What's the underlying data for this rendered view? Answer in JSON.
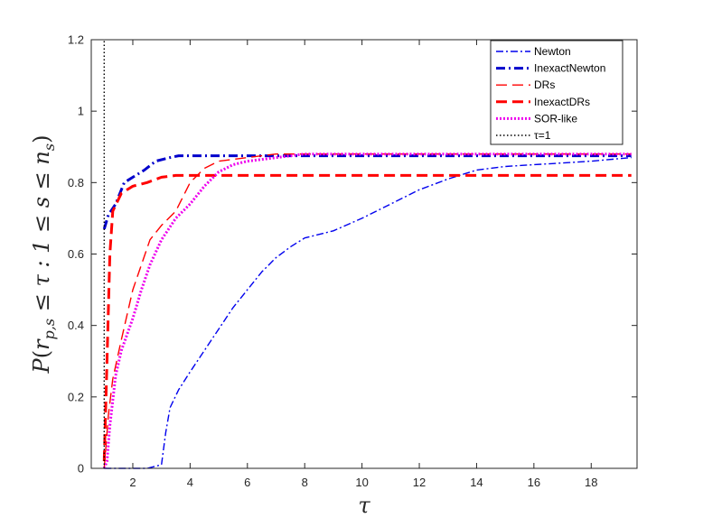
{
  "chart_data": {
    "type": "line",
    "title": "",
    "xlabel": "τ",
    "ylabel": "P(r_{p,s} ≤ τ : 1 ≤ s ≤ n_s)",
    "ylabel_parts": {
      "p": "P",
      "open": "(",
      "r": "r",
      "sub": "p,s",
      "rest": " ≤ τ : 1 ≤ s ≤ n",
      "ns_sub": "s",
      "close": ")"
    },
    "xlim": [
      0.55,
      19.6
    ],
    "ylim": [
      0,
      1.2
    ],
    "xticks": [
      2,
      4,
      6,
      8,
      10,
      12,
      14,
      16,
      18
    ],
    "yticks": [
      0,
      0.2,
      0.4,
      0.6,
      0.8,
      1,
      1.2
    ],
    "ytick_labels": [
      "0",
      "0.2",
      "0.4",
      "0.6",
      "0.8",
      "1",
      "1.2"
    ],
    "grid": false,
    "legend_position": "top-right",
    "series": [
      {
        "name": "Newton",
        "color": "#0000ee",
        "style": "dashdot",
        "width": "thin",
        "points": [
          [
            1,
            0
          ],
          [
            2.5,
            0
          ],
          [
            3.0,
            0.01
          ],
          [
            3.15,
            0.1
          ],
          [
            3.3,
            0.17
          ],
          [
            3.6,
            0.22
          ],
          [
            4.0,
            0.27
          ],
          [
            4.5,
            0.33
          ],
          [
            5.0,
            0.39
          ],
          [
            5.5,
            0.45
          ],
          [
            6.0,
            0.5
          ],
          [
            6.5,
            0.55
          ],
          [
            7.0,
            0.59
          ],
          [
            7.5,
            0.62
          ],
          [
            8.0,
            0.645
          ],
          [
            9.0,
            0.665
          ],
          [
            10.0,
            0.7
          ],
          [
            11.0,
            0.74
          ],
          [
            12.0,
            0.78
          ],
          [
            13.0,
            0.81
          ],
          [
            14.0,
            0.835
          ],
          [
            15.0,
            0.845
          ],
          [
            16.0,
            0.85
          ],
          [
            17.0,
            0.855
          ],
          [
            18.0,
            0.86
          ],
          [
            19.4,
            0.87
          ]
        ]
      },
      {
        "name": "InexactNewton",
        "color": "#0000cc",
        "style": "dashdot",
        "width": "thick",
        "points": [
          [
            1,
            0.67
          ],
          [
            1.15,
            0.71
          ],
          [
            1.4,
            0.74
          ],
          [
            1.7,
            0.8
          ],
          [
            2.0,
            0.815
          ],
          [
            2.4,
            0.835
          ],
          [
            2.8,
            0.86
          ],
          [
            3.3,
            0.87
          ],
          [
            3.6,
            0.875
          ],
          [
            6.0,
            0.875
          ],
          [
            19.4,
            0.875
          ]
        ]
      },
      {
        "name": "DRs",
        "color": "#ff0000",
        "style": "dashed",
        "width": "thin",
        "points": [
          [
            1,
            0
          ],
          [
            1.15,
            0.15
          ],
          [
            1.3,
            0.25
          ],
          [
            1.6,
            0.36
          ],
          [
            2.0,
            0.5
          ],
          [
            2.3,
            0.57
          ],
          [
            2.6,
            0.64
          ],
          [
            3.0,
            0.68
          ],
          [
            3.5,
            0.72
          ],
          [
            4.0,
            0.8
          ],
          [
            4.5,
            0.84
          ],
          [
            5.0,
            0.86
          ],
          [
            6.0,
            0.87
          ],
          [
            7.0,
            0.88
          ],
          [
            19.4,
            0.88
          ]
        ]
      },
      {
        "name": "InexactDRs",
        "color": "#ff0000",
        "style": "dashed",
        "width": "thick",
        "points": [
          [
            1,
            0.02
          ],
          [
            1.1,
            0.3
          ],
          [
            1.2,
            0.6
          ],
          [
            1.3,
            0.72
          ],
          [
            1.6,
            0.77
          ],
          [
            2.0,
            0.79
          ],
          [
            2.5,
            0.8
          ],
          [
            3.0,
            0.815
          ],
          [
            3.5,
            0.82
          ],
          [
            19.4,
            0.82
          ]
        ]
      },
      {
        "name": "SOR-like",
        "color": "#ee00ee",
        "style": "dotted",
        "width": "thick",
        "points": [
          [
            1,
            0
          ],
          [
            1.1,
            0.02
          ],
          [
            1.2,
            0.12
          ],
          [
            1.4,
            0.26
          ],
          [
            1.6,
            0.33
          ],
          [
            2.0,
            0.42
          ],
          [
            2.3,
            0.5
          ],
          [
            2.6,
            0.57
          ],
          [
            3.0,
            0.64
          ],
          [
            3.5,
            0.7
          ],
          [
            4.0,
            0.74
          ],
          [
            4.5,
            0.79
          ],
          [
            5.0,
            0.83
          ],
          [
            5.5,
            0.85
          ],
          [
            6.0,
            0.86
          ],
          [
            7.0,
            0.87
          ],
          [
            8.0,
            0.88
          ],
          [
            19.4,
            0.88
          ]
        ]
      },
      {
        "name": "τ=1",
        "color": "#000000",
        "style": "dotted",
        "width": "thin",
        "points": [
          [
            1,
            0
          ],
          [
            1,
            1.2
          ]
        ]
      }
    ]
  }
}
